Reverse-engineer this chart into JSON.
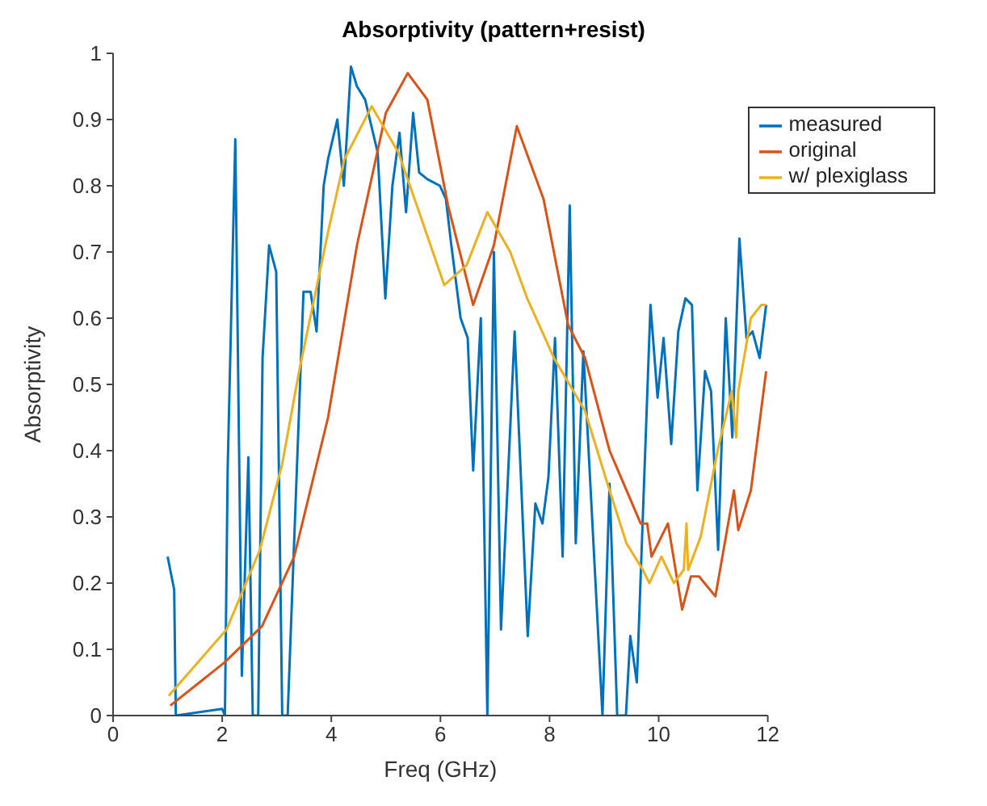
{
  "chart_data": {
    "type": "line",
    "title": "Absorptivity (pattern+resist)",
    "xlabel": "Freq (GHz)",
    "ylabel": "Absorptivity",
    "xlim": [
      0,
      12
    ],
    "xticks": [
      0,
      2,
      4,
      6,
      8,
      10,
      12
    ],
    "ylim": [
      0,
      1
    ],
    "yticks": [
      0,
      0.1,
      0.2,
      0.3,
      0.4,
      0.5,
      0.6,
      0.7,
      0.8,
      0.9,
      1
    ],
    "grid": false,
    "legend": "top right",
    "marker": "none",
    "line_style": "solid",
    "series": [
      {
        "name": "measured",
        "color": "#0072bd",
        "x": [
          1.0,
          1.12,
          1.15,
          2.0,
          2.05,
          2.1,
          2.24,
          2.36,
          2.48,
          2.56,
          2.66,
          2.74,
          2.86,
          2.99,
          3.1,
          3.2,
          3.49,
          3.62,
          3.73,
          3.86,
          3.94,
          4.11,
          4.23,
          4.36,
          4.47,
          4.62,
          4.85,
          4.99,
          5.12,
          5.25,
          5.37,
          5.5,
          5.61,
          5.76,
          5.99,
          6.1,
          6.2,
          6.37,
          6.5,
          6.6,
          6.74,
          6.86,
          6.98,
          7.11,
          7.36,
          7.6,
          7.74,
          7.87,
          7.98,
          8.1,
          8.24,
          8.37,
          8.48,
          8.62,
          8.97,
          9.1,
          9.24,
          9.4,
          9.48,
          9.6,
          9.85,
          9.98,
          10.09,
          10.23,
          10.36,
          10.49,
          10.61,
          10.71,
          10.85,
          10.96,
          11.09,
          11.23,
          11.35,
          11.48,
          11.61,
          11.72,
          11.85,
          11.97
        ],
        "values": [
          0.24,
          0.19,
          0,
          0.01,
          0,
          0.37,
          0.87,
          0.06,
          0.39,
          0,
          0,
          0.54,
          0.71,
          0.67,
          0,
          0,
          0.64,
          0.64,
          0.58,
          0.8,
          0.84,
          0.9,
          0.8,
          0.98,
          0.95,
          0.93,
          0.85,
          0.63,
          0.8,
          0.88,
          0.76,
          0.91,
          0.82,
          0.81,
          0.8,
          0.78,
          0.71,
          0.6,
          0.57,
          0.37,
          0.6,
          0,
          0.7,
          0.13,
          0.58,
          0.12,
          0.32,
          0.29,
          0.36,
          0.57,
          0.24,
          0.77,
          0.26,
          0.55,
          0,
          0.35,
          0,
          0,
          0.12,
          0.05,
          0.62,
          0.48,
          0.57,
          0.41,
          0.58,
          0.63,
          0.62,
          0.34,
          0.52,
          0.49,
          0.25,
          0.6,
          0.42,
          0.72,
          0.57,
          0.58,
          0.54,
          0.62
        ]
      },
      {
        "name": "original",
        "color": "#d95319",
        "x": [
          1.05,
          2.04,
          2.73,
          3.32,
          3.94,
          4.47,
          5.0,
          5.4,
          5.76,
          6.14,
          6.6,
          6.98,
          7.4,
          7.89,
          8.34,
          8.65,
          9.1,
          9.67,
          9.79,
          9.87,
          10.17,
          10.43,
          10.59,
          10.74,
          11.04,
          11.38,
          11.46,
          11.69,
          11.97
        ],
        "values": [
          0.015,
          0.08,
          0.135,
          0.24,
          0.45,
          0.71,
          0.91,
          0.97,
          0.93,
          0.77,
          0.62,
          0.71,
          0.89,
          0.78,
          0.59,
          0.54,
          0.4,
          0.29,
          0.29,
          0.24,
          0.29,
          0.16,
          0.21,
          0.21,
          0.18,
          0.34,
          0.28,
          0.34,
          0.52
        ]
      },
      {
        "name": "w/ plexiglass",
        "color": "#edb120",
        "x": [
          1.02,
          2.08,
          2.69,
          3.1,
          3.41,
          3.94,
          4.24,
          4.74,
          5.23,
          5.61,
          6.07,
          6.48,
          6.86,
          7.28,
          7.59,
          8.08,
          8.65,
          9.1,
          9.41,
          9.71,
          9.83,
          10.05,
          10.28,
          10.46,
          10.51,
          10.54,
          10.77,
          11.08,
          11.34,
          11.42,
          11.46,
          11.69,
          11.88,
          11.97
        ],
        "values": [
          0.03,
          0.13,
          0.25,
          0.38,
          0.52,
          0.73,
          0.84,
          0.92,
          0.85,
          0.76,
          0.65,
          0.68,
          0.76,
          0.7,
          0.63,
          0.54,
          0.46,
          0.34,
          0.26,
          0.22,
          0.2,
          0.24,
          0.2,
          0.22,
          0.29,
          0.22,
          0.27,
          0.4,
          0.49,
          0.42,
          0.49,
          0.6,
          0.62,
          0.62
        ]
      }
    ]
  }
}
